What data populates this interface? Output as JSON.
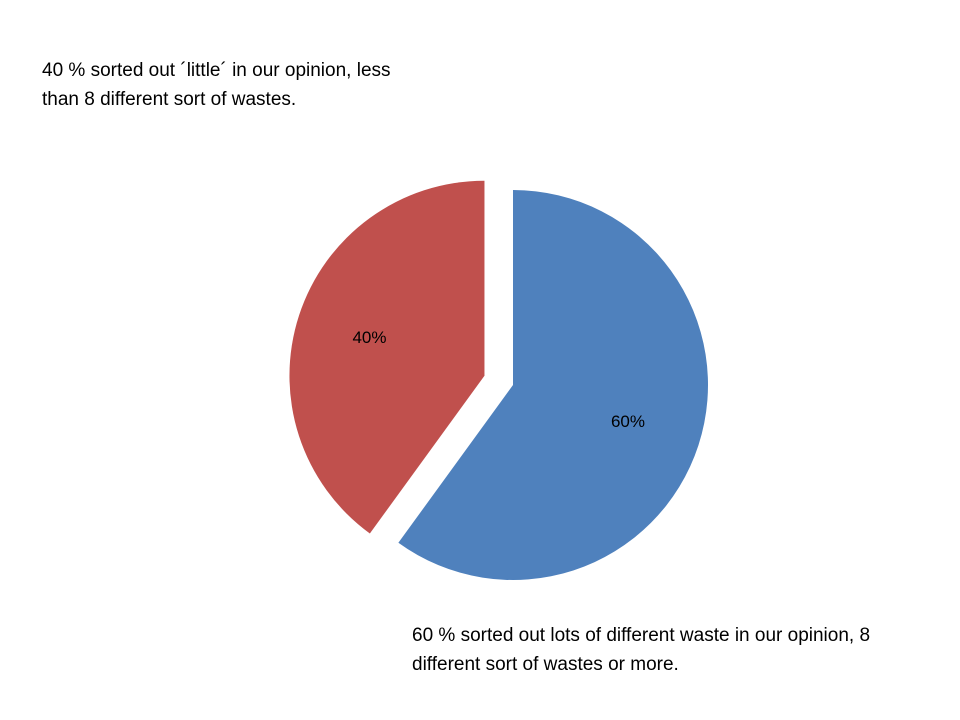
{
  "chart_data": {
    "type": "pie",
    "title": "",
    "slices": [
      {
        "label": "60%",
        "value": 60,
        "color": "#4F81BD",
        "exploded": false
      },
      {
        "label": "40%",
        "value": 40,
        "color": "#C0504D",
        "exploded": true
      }
    ],
    "start_angle_deg": 0,
    "direction": "clockwise",
    "legend": "none"
  },
  "annotations": {
    "top": "40 % sorted out ´little´ in our opinion, less than 8 different sort of wastes.",
    "bottom": "60 % sorted out lots of different waste in our opinion, 8 different sort of wastes or more."
  }
}
